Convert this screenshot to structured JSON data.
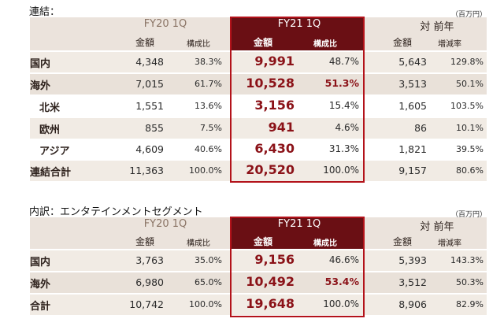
{
  "t1": {
    "title": "連結：",
    "unit": "（百万円）",
    "fy20": "FY20 1Q",
    "fy21": "FY21 1Q",
    "yoy": "対 前年",
    "amount": "金額",
    "ratio": "構成比",
    "change": "増減率",
    "rows": [
      {
        "label": "国内",
        "a20": "4,348",
        "r20": "38.3%",
        "a21": "9,991",
        "r21": "48.7%",
        "ya": "5,643",
        "yr": "129.8%"
      },
      {
        "label": "海外",
        "a20": "7,015",
        "r20": "61.7%",
        "a21": "10,528",
        "r21": "51.3%",
        "ya": "3,513",
        "yr": "50.1%"
      },
      {
        "label": "北米",
        "a20": "1,551",
        "r20": "13.6%",
        "a21": "3,156",
        "r21": "15.4%",
        "ya": "1,605",
        "yr": "103.5%"
      },
      {
        "label": "欧州",
        "a20": "855",
        "r20": "7.5%",
        "a21": "941",
        "r21": "4.6%",
        "ya": "86",
        "yr": "10.1%"
      },
      {
        "label": "アジア",
        "a20": "4,609",
        "r20": "40.6%",
        "a21": "6,430",
        "r21": "31.3%",
        "ya": "1,821",
        "yr": "39.5%"
      },
      {
        "label": "連結合計",
        "a20": "11,363",
        "r20": "100.0%",
        "a21": "20,520",
        "r21": "100.0%",
        "ya": "9,157",
        "yr": "80.6%"
      }
    ]
  },
  "t2": {
    "title": "内訳：エンタテインメントセグメント",
    "unit": "（百万円）",
    "fy20": "FY20 1Q",
    "fy21": "FY21 1Q",
    "yoy": "対 前年",
    "amount": "金額",
    "ratio": "構成比",
    "change": "増減率",
    "rows": [
      {
        "label": "国内",
        "a20": "3,763",
        "r20": "35.0%",
        "a21": "9,156",
        "r21": "46.6%",
        "ya": "5,393",
        "yr": "143.3%"
      },
      {
        "label": "海外",
        "a20": "6,980",
        "r20": "65.0%",
        "a21": "10,492",
        "r21": "53.4%",
        "ya": "3,512",
        "yr": "50.3%"
      },
      {
        "label": "合計",
        "a20": "10,742",
        "r20": "100.0%",
        "a21": "19,648",
        "r21": "100.0%",
        "ya": "8,906",
        "yr": "82.9%"
      }
    ]
  }
}
